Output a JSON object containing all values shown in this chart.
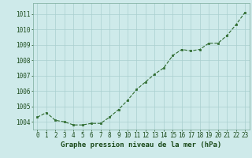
{
  "x": [
    0,
    1,
    2,
    3,
    4,
    5,
    6,
    7,
    8,
    9,
    10,
    11,
    12,
    13,
    14,
    15,
    16,
    17,
    18,
    19,
    20,
    21,
    22,
    23
  ],
  "y": [
    1004.3,
    1004.6,
    1004.1,
    1004.0,
    1003.8,
    1003.8,
    1003.9,
    1003.9,
    1004.3,
    1004.8,
    1005.4,
    1006.1,
    1006.6,
    1007.1,
    1007.5,
    1008.3,
    1008.7,
    1008.6,
    1008.7,
    1009.1,
    1009.1,
    1009.6,
    1010.3,
    1011.1
  ],
  "line_color": "#2d6a2d",
  "marker_color": "#2d6a2d",
  "bg_color": "#ceeaea",
  "grid_color": "#aacfcf",
  "xlabel": "Graphe pression niveau de la mer (hPa)",
  "xlabel_color": "#1a4a1a",
  "tick_color": "#1a4a1a",
  "ylim": [
    1003.5,
    1011.7
  ],
  "yticks": [
    1004,
    1005,
    1006,
    1007,
    1008,
    1009,
    1010,
    1011
  ],
  "xticks": [
    0,
    1,
    2,
    3,
    4,
    5,
    6,
    7,
    8,
    9,
    10,
    11,
    12,
    13,
    14,
    15,
    16,
    17,
    18,
    19,
    20,
    21,
    22,
    23
  ],
  "tick_fontsize": 5.5,
  "xlabel_fontsize": 6.5
}
